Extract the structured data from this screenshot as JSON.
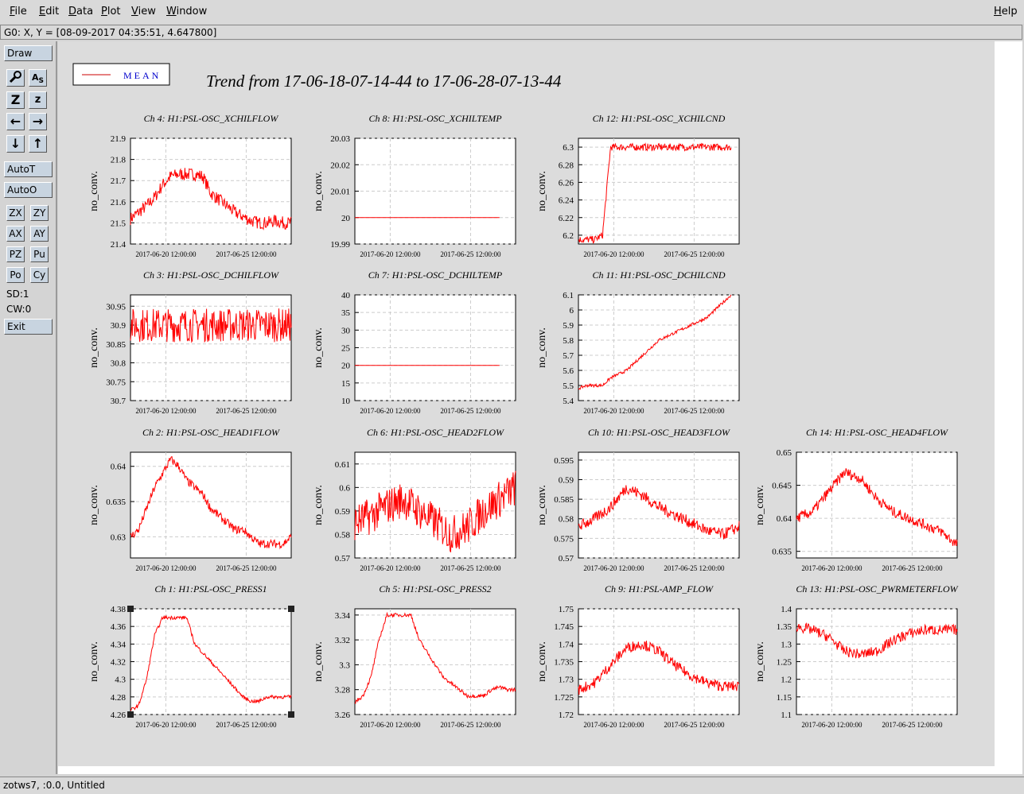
{
  "menu": {
    "items": [
      "File",
      "Edit",
      "Data",
      "Plot",
      "View",
      "Window"
    ],
    "help": "Help"
  },
  "coord_readout": "G0: X, Y = [08-09-2017 04:35:51, 4.647800]",
  "sidebar": {
    "draw": "Draw",
    "tool_icons": [
      "zoom-magnifier-icon",
      "text-label-icon",
      "zoom-z-big-icon",
      "zoom-z-small-icon",
      "arrow-left-icon",
      "arrow-right-icon",
      "arrow-down-icon",
      "arrow-up-icon"
    ],
    "auto_t": "AutoT",
    "auto_o": "AutoO",
    "small_buttons": [
      "ZX",
      "ZY",
      "AX",
      "AY",
      "PZ",
      "Pu",
      "Po",
      "Cy"
    ],
    "sd": "SD:1",
    "cw": "CW:0",
    "exit": "Exit"
  },
  "legend": {
    "label": "MEAN",
    "line_color": "#cc0000",
    "text_color": "#0000cc"
  },
  "title": "Trend from 17-06-18-07-14-44 to 17-06-28-07-13-44",
  "status_text": "zotws7, :0.0, Untitled",
  "plot_color": "#ff0000",
  "chart_data": [
    {
      "type": "line",
      "title": "Ch 4: H1:PSL-OSC_XCHILFLOW",
      "ylabel": "no_conv.",
      "yticks": [
        "21.9",
        "21.8",
        "21.7",
        "21.6",
        "21.5",
        "21.4"
      ],
      "ylim": [
        21.4,
        21.9
      ],
      "xticks": [
        "2017-06-20 12:00:00",
        "2017-06-25 12:00:00"
      ],
      "x": [
        0,
        5,
        10,
        15,
        20,
        25,
        30,
        35,
        40,
        45,
        50,
        55,
        60,
        65,
        70,
        75,
        80,
        85,
        90,
        95,
        100
      ],
      "y": [
        21.52,
        21.55,
        21.58,
        21.62,
        21.68,
        21.72,
        21.73,
        21.73,
        21.73,
        21.72,
        21.64,
        21.61,
        21.58,
        21.55,
        21.53,
        21.51,
        21.5,
        21.5,
        21.51,
        21.5,
        21.5
      ],
      "noise": 0.03
    },
    {
      "type": "line",
      "title": "Ch 8: H1:PSL-OSC_XCHILTEMP",
      "ylabel": "no_conv.",
      "yticks": [
        "20.03",
        "20.02",
        "20.01",
        "20",
        "19.99"
      ],
      "ylim": [
        19.99,
        20.03
      ],
      "xticks": [
        "2017-06-20 12:00:00",
        "2017-06-25 12:00:00"
      ],
      "x": [
        0,
        5,
        10,
        15,
        20,
        25,
        30,
        35,
        40,
        45,
        50,
        55,
        60,
        65,
        70,
        75,
        80,
        85,
        90
      ],
      "y": [
        20,
        20,
        20,
        20,
        20,
        20,
        20,
        20,
        20,
        20,
        20,
        20,
        20,
        20,
        20,
        20,
        20,
        20,
        20
      ],
      "noise": 0.0
    },
    {
      "type": "line",
      "title": "Ch 12: H1:PSL-OSC_XCHILCND",
      "ylabel": "no_conv.",
      "yticks": [
        "6.3",
        "6.28",
        "6.26",
        "6.24",
        "6.22",
        "6.2"
      ],
      "ylim": [
        6.19,
        6.31
      ],
      "xticks": [
        "2017-06-20 12:00:00",
        "2017-06-25 12:00:00"
      ],
      "x": [
        0,
        10,
        15,
        17,
        20,
        25,
        30,
        35,
        40,
        50,
        60,
        70,
        80,
        90,
        95
      ],
      "y": [
        6.195,
        6.195,
        6.2,
        6.24,
        6.3,
        6.3,
        6.3,
        6.3,
        6.3,
        6.3,
        6.3,
        6.3,
        6.3,
        6.3,
        6.3
      ],
      "noise": 0.004
    },
    {
      "type": "line",
      "title": "Ch 3: H1:PSL-OSC_DCHILFLOW",
      "ylabel": "no_conv.",
      "yticks": [
        "30.95",
        "30.9",
        "30.85",
        "30.8",
        "30.75",
        "30.7"
      ],
      "ylim": [
        30.7,
        30.98
      ],
      "xticks": [
        "2017-06-20 12:00:00",
        "2017-06-25 12:00:00"
      ],
      "x": [
        0,
        10,
        20,
        30,
        40,
        50,
        60,
        70,
        80,
        90,
        100
      ],
      "y": [
        30.9,
        30.9,
        30.9,
        30.9,
        30.9,
        30.9,
        30.9,
        30.9,
        30.9,
        30.9,
        30.9
      ],
      "noise": 0.045
    },
    {
      "type": "line",
      "title": "Ch 7: H1:PSL-OSC_DCHILTEMP",
      "ylabel": "no_conv.",
      "yticks": [
        "40",
        "35",
        "30",
        "25",
        "20",
        "15",
        "10"
      ],
      "ylim": [
        10,
        40
      ],
      "xticks": [
        "2017-06-20 12:00:00",
        "2017-06-25 12:00:00"
      ],
      "x": [
        0,
        90
      ],
      "y": [
        20,
        20
      ],
      "noise": 0.0
    },
    {
      "type": "line",
      "title": "Ch 11: H1:PSL-OSC_DCHILCND",
      "ylabel": "no_conv.",
      "yticks": [
        "6.1",
        "6",
        "5.9",
        "5.8",
        "5.7",
        "5.6",
        "5.5",
        "5.4"
      ],
      "ylim": [
        5.4,
        6.1
      ],
      "xticks": [
        "2017-06-20 12:00:00",
        "2017-06-25 12:00:00"
      ],
      "x": [
        0,
        5,
        15,
        20,
        30,
        35,
        45,
        50,
        60,
        70,
        80,
        90,
        95
      ],
      "y": [
        5.48,
        5.5,
        5.5,
        5.55,
        5.6,
        5.65,
        5.75,
        5.8,
        5.85,
        5.9,
        5.95,
        6.05,
        6.1
      ],
      "noise": 0.01
    },
    {
      "type": "line",
      "title": "Ch 2: H1:PSL-OSC_HEAD1FLOW",
      "ylabel": "no_conv.",
      "yticks": [
        "0.64",
        "0.635",
        "0.63"
      ],
      "ylim": [
        0.627,
        0.642
      ],
      "xticks": [
        "2017-06-20 12:00:00",
        "2017-06-25 12:00:00"
      ],
      "x": [
        0,
        5,
        10,
        15,
        20,
        25,
        30,
        35,
        40,
        45,
        50,
        55,
        60,
        65,
        70,
        75,
        80,
        85,
        90,
        95,
        100
      ],
      "y": [
        0.63,
        0.631,
        0.634,
        0.637,
        0.639,
        0.641,
        0.64,
        0.638,
        0.637,
        0.636,
        0.634,
        0.633,
        0.632,
        0.631,
        0.631,
        0.63,
        0.629,
        0.629,
        0.629,
        0.629,
        0.63
      ],
      "noise": 0.0006
    },
    {
      "type": "line",
      "title": "Ch 6: H1:PSL-OSC_HEAD2FLOW",
      "ylabel": "no_conv.",
      "yticks": [
        "0.61",
        "0.6",
        "0.59",
        "0.58",
        "0.57"
      ],
      "ylim": [
        0.57,
        0.615
      ],
      "xticks": [
        "2017-06-20 12:00:00",
        "2017-06-25 12:00:00"
      ],
      "x": [
        0,
        10,
        20,
        30,
        40,
        50,
        60,
        70,
        80,
        90,
        100
      ],
      "y": [
        0.585,
        0.588,
        0.592,
        0.595,
        0.59,
        0.585,
        0.58,
        0.583,
        0.59,
        0.595,
        0.6
      ],
      "noise": 0.008
    },
    {
      "type": "line",
      "title": "Ch 10: H1:PSL-OSC_HEAD3FLOW",
      "ylabel": "no_conv.",
      "yticks": [
        "0.595",
        "0.59",
        "0.585",
        "0.58",
        "0.575",
        "0.57"
      ],
      "ylim": [
        0.57,
        0.597
      ],
      "xticks": [
        "2017-06-20 12:00:00",
        "2017-06-25 12:00:00"
      ],
      "x": [
        0,
        10,
        20,
        30,
        40,
        50,
        60,
        70,
        80,
        90,
        100
      ],
      "y": [
        0.578,
        0.58,
        0.583,
        0.588,
        0.586,
        0.583,
        0.581,
        0.579,
        0.577,
        0.576,
        0.578
      ],
      "noise": 0.0015
    },
    {
      "type": "line",
      "title": "Ch 14: H1:PSL-OSC_HEAD4FLOW",
      "ylabel": "no_conv.",
      "yticks": [
        "0.65",
        "0.645",
        "0.64",
        "0.635"
      ],
      "ylim": [
        0.634,
        0.65
      ],
      "xticks": [
        "2017-06-20 12:00:00",
        "2017-06-25 12:00:00"
      ],
      "x": [
        0,
        10,
        20,
        30,
        40,
        50,
        60,
        70,
        80,
        90,
        100
      ],
      "y": [
        0.64,
        0.641,
        0.644,
        0.647,
        0.646,
        0.643,
        0.641,
        0.64,
        0.639,
        0.638,
        0.636
      ],
      "noise": 0.0008
    },
    {
      "type": "line",
      "title": "Ch 1: H1:PSL-OSC_PRESS1",
      "ylabel": "no_conv.",
      "yticks": [
        "4.38",
        "4.36",
        "4.34",
        "4.32",
        "4.3",
        "4.28",
        "4.26"
      ],
      "ylim": [
        4.26,
        4.38
      ],
      "xticks": [
        "2017-06-20 12:00:00",
        "2017-06-25 12:00:00"
      ],
      "x": [
        0,
        5,
        10,
        15,
        20,
        25,
        30,
        35,
        40,
        45,
        50,
        55,
        60,
        65,
        70,
        75,
        80,
        85,
        90,
        95,
        100
      ],
      "y": [
        4.265,
        4.27,
        4.3,
        4.35,
        4.37,
        4.37,
        4.37,
        4.37,
        4.34,
        4.33,
        4.32,
        4.31,
        4.3,
        4.29,
        4.28,
        4.275,
        4.275,
        4.28,
        4.28,
        4.28,
        4.28
      ],
      "noise": 0.002
    },
    {
      "type": "line",
      "title": "Ch 5: H1:PSL-OSC_PRESS2",
      "ylabel": "no_conv.",
      "yticks": [
        "3.34",
        "3.32",
        "3.3",
        "3.28",
        "3.26"
      ],
      "ylim": [
        3.26,
        3.345
      ],
      "xticks": [
        "2017-06-20 12:00:00",
        "2017-06-25 12:00:00"
      ],
      "x": [
        0,
        5,
        10,
        15,
        20,
        25,
        30,
        35,
        40,
        45,
        50,
        55,
        60,
        65,
        70,
        75,
        80,
        85,
        90,
        95,
        100
      ],
      "y": [
        3.27,
        3.275,
        3.29,
        3.32,
        3.34,
        3.34,
        3.34,
        3.34,
        3.32,
        3.31,
        3.3,
        3.29,
        3.285,
        3.28,
        3.275,
        3.275,
        3.275,
        3.28,
        3.282,
        3.28,
        3.28
      ],
      "noise": 0.0015
    },
    {
      "type": "line",
      "title": "Ch 9: H1:PSL-AMP_FLOW",
      "ylabel": "no_conv.",
      "yticks": [
        "1.75",
        "1.745",
        "1.74",
        "1.735",
        "1.73",
        "1.725",
        "1.72"
      ],
      "ylim": [
        1.72,
        1.75
      ],
      "xticks": [
        "2017-06-20 12:00:00",
        "2017-06-25 12:00:00"
      ],
      "x": [
        0,
        10,
        20,
        30,
        40,
        50,
        60,
        70,
        80,
        90,
        100
      ],
      "y": [
        1.727,
        1.729,
        1.734,
        1.739,
        1.74,
        1.738,
        1.734,
        1.731,
        1.729,
        1.728,
        1.728
      ],
      "noise": 0.0015
    },
    {
      "type": "line",
      "title": "Ch 13: H1:PSL-OSC_PWRMETERFLOW",
      "ylabel": "no_conv.",
      "yticks": [
        "1.4",
        "1.35",
        "1.3",
        "1.25",
        "1.2",
        "1.15",
        "1.1"
      ],
      "ylim": [
        1.1,
        1.4
      ],
      "xticks": [
        "2017-06-20 12:00:00",
        "2017-06-25 12:00:00"
      ],
      "x": [
        0,
        10,
        20,
        30,
        40,
        50,
        60,
        70,
        80,
        90,
        100
      ],
      "y": [
        1.35,
        1.34,
        1.32,
        1.28,
        1.27,
        1.28,
        1.31,
        1.33,
        1.34,
        1.34,
        1.34
      ],
      "noise": 0.015
    }
  ]
}
